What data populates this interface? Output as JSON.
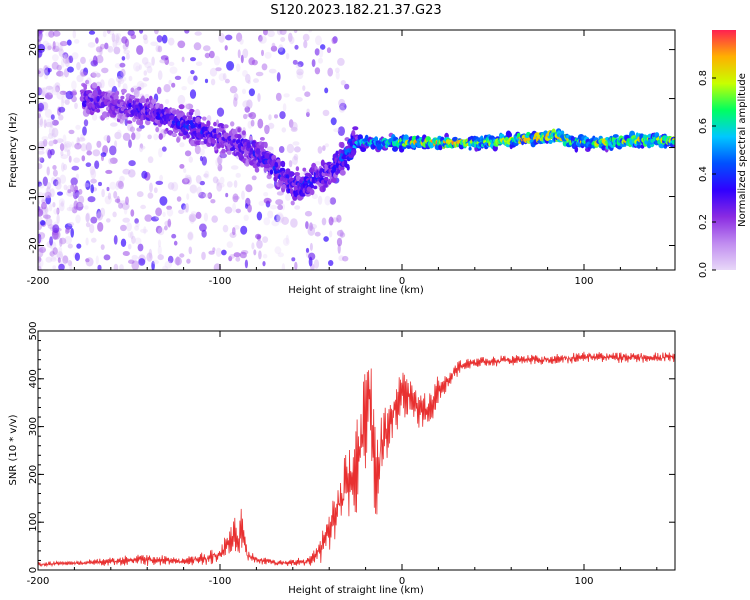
{
  "title": "S120.2023.182.21.37.G23",
  "colors": {
    "snr_line": "#e83030",
    "background": "#ffffff",
    "axis": "#000000",
    "colormap": [
      "#e8d8f8",
      "#c08cf0",
      "#8a2be2",
      "#3000ff",
      "#0050ff",
      "#00c8ff",
      "#00ff60",
      "#c8ff00",
      "#ffb000",
      "#ff2050"
    ]
  },
  "chart_data": [
    {
      "type": "heatmap",
      "xlabel": "Height of straight line (km)",
      "ylabel": "Frequency (Hz)",
      "xlim": [
        -200,
        150
      ],
      "ylim": [
        -25,
        24
      ],
      "x_ticks": [
        -200,
        -100,
        0,
        100
      ],
      "x_tick_labels": [
        "-200",
        "-100",
        "0",
        "100"
      ],
      "y_ticks": [
        -20,
        -10,
        0,
        10,
        20
      ],
      "y_tick_labels": [
        "-20",
        "-10",
        "0",
        "10",
        "20"
      ],
      "ridge": {
        "x": [
          -175,
          -160,
          -145,
          -130,
          -115,
          -100,
          -85,
          -70,
          -60,
          -50,
          -40,
          -30,
          -25,
          -20,
          -10,
          0,
          20,
          40,
          60,
          75,
          85,
          95,
          110,
          130,
          150
        ],
        "y": [
          10,
          9,
          8,
          6,
          4,
          2,
          0,
          -4,
          -8,
          -7,
          -5,
          -1,
          1,
          1,
          1,
          1,
          1,
          1,
          1.5,
          2,
          2.5,
          1,
          1,
          1.5,
          1.5
        ],
        "amplitude": [
          0.3,
          0.25,
          0.3,
          0.3,
          0.35,
          0.3,
          0.3,
          0.35,
          0.35,
          0.35,
          0.3,
          0.45,
          0.5,
          0.55,
          0.6,
          0.7,
          0.85,
          0.75,
          0.8,
          0.8,
          0.85,
          0.7,
          0.75,
          0.75,
          0.7
        ]
      },
      "colorbar": {
        "label": "Normalized spectral amplitude",
        "range": [
          0,
          1
        ],
        "ticks": [
          0.0,
          0.2,
          0.4,
          0.6,
          0.8
        ],
        "tick_labels": [
          "0.0",
          "0.2",
          "0.4",
          "0.6",
          "0.8"
        ]
      }
    },
    {
      "type": "line",
      "xlabel": "Height of straight line (km)",
      "ylabel": "SNR (10 * v/v)",
      "xlim": [
        -200,
        150
      ],
      "ylim": [
        0,
        500
      ],
      "x_ticks": [
        -200,
        -100,
        0,
        100
      ],
      "x_tick_labels": [
        "-200",
        "-100",
        "0",
        "100"
      ],
      "y_ticks": [
        0,
        100,
        200,
        300,
        400,
        500
      ],
      "y_tick_labels": [
        "0",
        "100",
        "200",
        "300",
        "400",
        "500"
      ],
      "series": [
        {
          "x": [
            -200,
            -180,
            -160,
            -140,
            -120,
            -110,
            -100,
            -95,
            -92,
            -90,
            -88,
            -85,
            -80,
            -75,
            -70,
            -60,
            -50,
            -45,
            -40,
            -35,
            -30,
            -25,
            -20,
            -18,
            -16,
            -14,
            -10,
            -5,
            0,
            5,
            10,
            15,
            20,
            30,
            40,
            60,
            80,
            100,
            120,
            150
          ],
          "y": [
            12,
            14,
            18,
            22,
            18,
            22,
            35,
            60,
            80,
            55,
            95,
            30,
            20,
            20,
            15,
            15,
            20,
            40,
            90,
            130,
            180,
            220,
            330,
            410,
            280,
            200,
            280,
            320,
            380,
            350,
            330,
            330,
            380,
            420,
            435,
            440,
            440,
            445,
            445,
            445
          ],
          "amplitude": [
            4,
            5,
            8,
            12,
            8,
            12,
            18,
            30,
            40,
            30,
            45,
            14,
            8,
            8,
            6,
            6,
            10,
            25,
            45,
            60,
            80,
            90,
            110,
            90,
            100,
            100,
            80,
            60,
            50,
            45,
            40,
            35,
            30,
            15,
            10,
            10,
            10,
            10,
            10,
            10
          ]
        }
      ]
    }
  ]
}
